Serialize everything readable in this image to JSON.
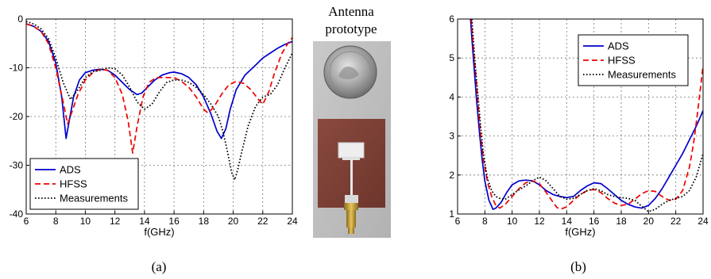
{
  "chart_data": [
    {
      "type": "line",
      "panel_label": "(a)",
      "xlabel": "f(GHz)",
      "ylabel": "",
      "xlim": [
        6,
        24
      ],
      "ylim": [
        -40,
        0
      ],
      "xticks": [
        "6",
        "8",
        "10",
        "12",
        "14",
        "16",
        "18",
        "20",
        "22",
        "24"
      ],
      "yticks": [
        "0",
        "-10",
        "-20",
        "-30",
        "-40"
      ],
      "grid": true,
      "legend_position": "bottom-left",
      "series": [
        {
          "name": "ADS",
          "color": "#0000cc",
          "dash": "solid",
          "x": [
            6,
            6.5,
            7,
            7.5,
            8,
            8.4,
            8.7,
            8.9,
            9.2,
            9.6,
            10,
            10.5,
            11,
            11.5,
            12,
            12.5,
            13,
            13.5,
            13.8,
            14.2,
            14.7,
            15.2,
            15.7,
            16,
            16.5,
            17,
            17.5,
            18,
            18.5,
            18.9,
            19.2,
            19.5,
            19.8,
            20.2,
            20.8,
            21.5,
            22,
            22.5,
            23,
            23.5,
            24
          ],
          "y": [
            -1,
            -1.5,
            -2.5,
            -4.5,
            -9,
            -16,
            -24.5,
            -21,
            -16,
            -12.5,
            -11,
            -10.5,
            -10.3,
            -10.5,
            -11.5,
            -13,
            -14.5,
            -15.5,
            -15.2,
            -14,
            -12.5,
            -11.5,
            -11,
            -10.9,
            -11.2,
            -12,
            -13.5,
            -16,
            -19.5,
            -23,
            -24.5,
            -22.5,
            -18.5,
            -14.5,
            -11.5,
            -9.5,
            -8,
            -7,
            -6,
            -5.2,
            -4.6
          ]
        },
        {
          "name": "HFSS",
          "color": "#ee0000",
          "dash": "dashed",
          "x": [
            6,
            6.5,
            7,
            7.5,
            8,
            8.5,
            8.8,
            9.1,
            9.5,
            10,
            10.5,
            11,
            11.5,
            12,
            12.5,
            12.9,
            13.2,
            13.5,
            13.9,
            14.3,
            14.8,
            15.3,
            16,
            16.5,
            17,
            17.5,
            18,
            18.3,
            18.7,
            19.2,
            19.7,
            20.2,
            20.7,
            21.2,
            21.7,
            22,
            22.4,
            22.8,
            23.3,
            23.7,
            24
          ],
          "y": [
            -1,
            -1.5,
            -2.5,
            -5,
            -10,
            -17,
            -21.5,
            -19,
            -15.5,
            -12.5,
            -11,
            -10.3,
            -10.5,
            -12,
            -15.5,
            -21,
            -27.5,
            -22,
            -16,
            -13,
            -12,
            -12,
            -12,
            -12.8,
            -14,
            -16,
            -18.5,
            -19.3,
            -18,
            -15.5,
            -13.5,
            -12.8,
            -13.2,
            -14.5,
            -16.5,
            -17.5,
            -15,
            -11,
            -7,
            -5,
            -3.8
          ]
        },
        {
          "name": "Measurements",
          "color": "#000000",
          "dash": "dotted",
          "x": [
            6,
            6.5,
            7,
            7.5,
            8,
            8.5,
            9,
            9.5,
            10,
            10.5,
            11,
            11.5,
            12,
            12.5,
            13,
            13.5,
            14,
            14.5,
            15,
            15.5,
            16,
            16.5,
            17,
            17.5,
            18,
            18.5,
            19,
            19.3,
            19.6,
            19.9,
            20.1,
            20.3,
            20.6,
            21,
            21.5,
            22,
            22.5,
            23,
            23.5,
            24
          ],
          "y": [
            -0.5,
            -1,
            -2,
            -4,
            -8,
            -13,
            -16.5,
            -14.5,
            -12,
            -10.8,
            -10.5,
            -10,
            -10.2,
            -11.5,
            -14,
            -17,
            -18.5,
            -17.5,
            -15,
            -13,
            -12.5,
            -12.5,
            -13,
            -14,
            -15.5,
            -17.5,
            -20,
            -23,
            -27,
            -31.5,
            -33,
            -31,
            -27,
            -22,
            -18,
            -16,
            -15.5,
            -13.5,
            -10,
            -7
          ]
        }
      ]
    },
    {
      "type": "line",
      "panel_label": "(b)",
      "xlabel": "f(GHz)",
      "ylabel": "",
      "xlim": [
        6,
        24
      ],
      "ylim": [
        1,
        6
      ],
      "xticks": [
        "6",
        "8",
        "10",
        "12",
        "14",
        "16",
        "18",
        "20",
        "22",
        "24"
      ],
      "yticks": [
        "1",
        "2",
        "3",
        "4",
        "5",
        "6"
      ],
      "grid": true,
      "legend_position": "top-right",
      "series": [
        {
          "name": "ADS",
          "color": "#0000cc",
          "dash": "solid",
          "x": [
            6.95,
            7.05,
            7.2,
            7.4,
            7.6,
            7.8,
            8,
            8.3,
            8.6,
            8.8,
            9.2,
            9.6,
            10,
            10.5,
            11,
            11.5,
            12,
            12.5,
            13,
            13.5,
            14,
            14.5,
            15,
            15.5,
            16,
            16.5,
            17,
            17.5,
            18,
            18.5,
            19,
            19.5,
            20,
            20.5,
            21,
            21.5,
            22,
            22.5,
            23,
            23.5,
            24
          ],
          "y": [
            6,
            5.5,
            4.8,
            3.9,
            3.1,
            2.4,
            1.85,
            1.35,
            1.12,
            1.15,
            1.3,
            1.55,
            1.75,
            1.85,
            1.87,
            1.85,
            1.75,
            1.6,
            1.5,
            1.45,
            1.42,
            1.45,
            1.6,
            1.72,
            1.8,
            1.78,
            1.65,
            1.5,
            1.35,
            1.25,
            1.18,
            1.15,
            1.22,
            1.4,
            1.65,
            1.95,
            2.25,
            2.55,
            2.9,
            3.25,
            3.65
          ]
        },
        {
          "name": "HFSS",
          "color": "#ee0000",
          "dash": "dashed",
          "x": [
            7,
            7.1,
            7.3,
            7.5,
            7.7,
            7.9,
            8.2,
            8.5,
            8.8,
            9.1,
            9.5,
            10,
            10.5,
            11,
            11.5,
            12,
            12.5,
            13,
            13.3,
            13.6,
            14,
            14.5,
            15,
            15.5,
            16,
            16.5,
            17,
            17.5,
            18,
            18.5,
            19,
            19.5,
            20,
            20.5,
            21,
            21.5,
            22,
            22.5,
            23,
            23.3,
            23.6,
            24
          ],
          "y": [
            6,
            5.5,
            4.7,
            3.8,
            3,
            2.4,
            1.8,
            1.45,
            1.22,
            1.15,
            1.25,
            1.45,
            1.65,
            1.8,
            1.85,
            1.78,
            1.55,
            1.3,
            1.16,
            1.13,
            1.18,
            1.35,
            1.5,
            1.6,
            1.63,
            1.55,
            1.4,
            1.28,
            1.22,
            1.25,
            1.38,
            1.52,
            1.6,
            1.58,
            1.45,
            1.35,
            1.38,
            1.6,
            2.2,
            2.8,
            3.6,
            4.8
          ]
        },
        {
          "name": "Measurements",
          "color": "#000000",
          "dash": "dotted",
          "x": [
            7.05,
            7.15,
            7.3,
            7.5,
            7.7,
            7.9,
            8.2,
            8.5,
            8.8,
            9.1,
            9.5,
            10,
            10.5,
            11,
            11.5,
            12,
            12.5,
            13,
            13.5,
            14,
            14.5,
            15,
            15.5,
            16,
            16.5,
            17,
            17.5,
            18,
            18.5,
            19,
            19.5,
            20,
            20.5,
            21,
            21.5,
            22,
            22.5,
            23,
            23.5,
            24
          ],
          "y": [
            6,
            5.5,
            4.8,
            4,
            3.2,
            2.5,
            1.9,
            1.6,
            1.45,
            1.4,
            1.38,
            1.5,
            1.62,
            1.72,
            1.85,
            1.95,
            1.85,
            1.65,
            1.45,
            1.38,
            1.4,
            1.5,
            1.6,
            1.65,
            1.6,
            1.5,
            1.45,
            1.42,
            1.4,
            1.35,
            1.2,
            1.06,
            1.12,
            1.25,
            1.35,
            1.4,
            1.45,
            1.6,
            1.95,
            2.55
          ]
        }
      ]
    }
  ],
  "photo": {
    "title_line1": "Antenna",
    "title_line2": "prototype"
  }
}
